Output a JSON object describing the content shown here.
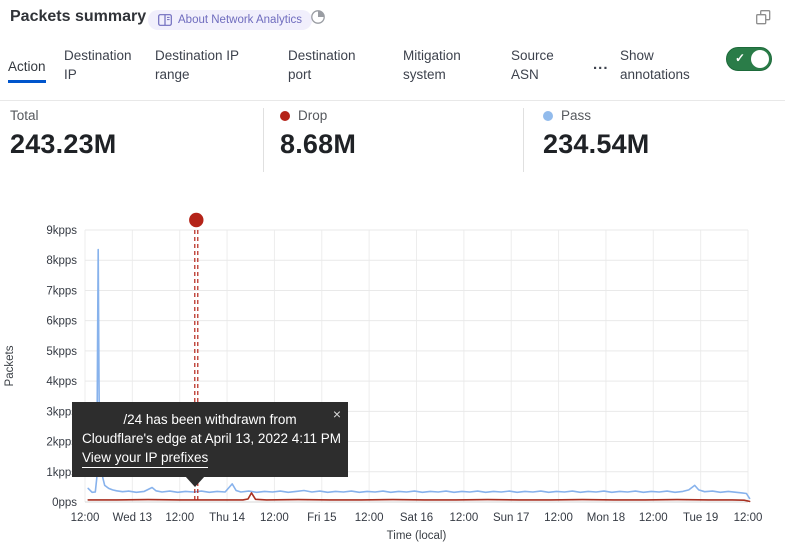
{
  "header": {
    "title": "Packets summary",
    "badge_label": "About Network Analytics",
    "history_icon": "clock-pie-icon",
    "expand_icon": "pop-out-icon"
  },
  "tabs": {
    "items": [
      {
        "label": "Action",
        "active": true
      },
      {
        "label": "Destination IP",
        "active": false
      },
      {
        "label": "Destination IP range",
        "active": false
      },
      {
        "label": "Destination port",
        "active": false
      },
      {
        "label": "Mitigation system",
        "active": false
      },
      {
        "label": "Source ASN",
        "active": false
      }
    ],
    "more_label": "...",
    "annotations_label": "Show annotations",
    "toggle_on": true,
    "toggle_check": "✓"
  },
  "stats": [
    {
      "label": "Total",
      "value": "243.23M",
      "dot_color": null
    },
    {
      "label": "Drop",
      "value": "8.68M",
      "dot_color": "#b42318"
    },
    {
      "label": "Pass",
      "value": "234.54M",
      "dot_color": "#92bbec"
    }
  ],
  "tooltip": {
    "line1": "/24 has been withdrawn from",
    "line2": "Cloudflare's edge at April 13, 2022 4:11 PM",
    "link": "View your IP prefixes",
    "close": "×"
  },
  "colors": {
    "accent_blue": "#0055cc",
    "toggle_green": "#2a7c48",
    "drop_red": "#b42318",
    "pass_blue": "#92bbec"
  },
  "chart_data": {
    "type": "line",
    "xlabel": "Time (local)",
    "ylabel": "Packets",
    "x_unit": "hours since Tue Apr 12 2022 12:00 (local)",
    "x_range": [
      0,
      168
    ],
    "ylim": [
      0,
      9
    ],
    "grid": true,
    "y_ticks": [
      {
        "v": 0,
        "label": "0pps"
      },
      {
        "v": 1,
        "label": "1kpps"
      },
      {
        "v": 2,
        "label": "2kpps"
      },
      {
        "v": 3,
        "label": "3kpps"
      },
      {
        "v": 4,
        "label": "4kpps"
      },
      {
        "v": 5,
        "label": "5kpps"
      },
      {
        "v": 6,
        "label": "6kpps"
      },
      {
        "v": 7,
        "label": "7kpps"
      },
      {
        "v": 8,
        "label": "8kpps"
      },
      {
        "v": 9,
        "label": "9kpps"
      }
    ],
    "x_ticks": [
      {
        "t": 0,
        "label": "12:00"
      },
      {
        "t": 12,
        "label": "Wed 13"
      },
      {
        "t": 24,
        "label": "12:00"
      },
      {
        "t": 36,
        "label": "Thu 14"
      },
      {
        "t": 48,
        "label": "12:00"
      },
      {
        "t": 60,
        "label": "Fri 15"
      },
      {
        "t": 72,
        "label": "12:00"
      },
      {
        "t": 84,
        "label": "Sat 16"
      },
      {
        "t": 96,
        "label": "12:00"
      },
      {
        "t": 108,
        "label": "Sun 17"
      },
      {
        "t": 120,
        "label": "12:00"
      },
      {
        "t": 132,
        "label": "Mon 18"
      },
      {
        "t": 144,
        "label": "12:00"
      },
      {
        "t": 156,
        "label": "Tue 19"
      },
      {
        "t": 168,
        "label": "12:00"
      }
    ],
    "annotation": {
      "t": 28.2,
      "color": "#b42318",
      "label": "/24 has been withdrawn from Cloudflare's edge at April 13, 2022 4:11 PM"
    },
    "series": [
      {
        "name": "Pass",
        "color": "#87b2ec",
        "points": [
          [
            0.8,
            0.45
          ],
          [
            1.8,
            0.32
          ],
          [
            2.6,
            0.33
          ],
          [
            3.0,
            0.8
          ],
          [
            3.2,
            5.5
          ],
          [
            3.35,
            8.35
          ],
          [
            3.55,
            4.0
          ],
          [
            3.75,
            1.0
          ],
          [
            4.1,
            1.35
          ],
          [
            4.5,
            0.8
          ],
          [
            5.0,
            0.55
          ],
          [
            6,
            0.45
          ],
          [
            7,
            0.4
          ],
          [
            8,
            0.37
          ],
          [
            9.5,
            0.34
          ],
          [
            11,
            0.36
          ],
          [
            13,
            0.32
          ],
          [
            15,
            0.35
          ],
          [
            17,
            0.48
          ],
          [
            18,
            0.37
          ],
          [
            19.5,
            0.33
          ],
          [
            21.5,
            0.36
          ],
          [
            23.5,
            0.32
          ],
          [
            25.5,
            0.35
          ],
          [
            27.5,
            0.33
          ],
          [
            29.5,
            0.36
          ],
          [
            31.5,
            0.32
          ],
          [
            33.5,
            0.35
          ],
          [
            35.5,
            0.33
          ],
          [
            37.3,
            0.6
          ],
          [
            38.3,
            0.38
          ],
          [
            39.5,
            0.33
          ],
          [
            41.5,
            0.36
          ],
          [
            43.5,
            0.32
          ],
          [
            45.5,
            0.35
          ],
          [
            47.5,
            0.33
          ],
          [
            49.5,
            0.36
          ],
          [
            51.5,
            0.32
          ],
          [
            53.5,
            0.35
          ],
          [
            55.5,
            0.38
          ],
          [
            57.5,
            0.33
          ],
          [
            59.5,
            0.36
          ],
          [
            61.5,
            0.32
          ],
          [
            63.5,
            0.35
          ],
          [
            65.5,
            0.33
          ],
          [
            67.5,
            0.36
          ],
          [
            69.5,
            0.32
          ],
          [
            71.5,
            0.35
          ],
          [
            73.5,
            0.33
          ],
          [
            75.5,
            0.36
          ],
          [
            77.5,
            0.32
          ],
          [
            79.5,
            0.35
          ],
          [
            81.5,
            0.33
          ],
          [
            83.5,
            0.36
          ],
          [
            85.5,
            0.32
          ],
          [
            87.5,
            0.35
          ],
          [
            89.5,
            0.33
          ],
          [
            91.5,
            0.36
          ],
          [
            93.5,
            0.32
          ],
          [
            95.5,
            0.35
          ],
          [
            97.5,
            0.33
          ],
          [
            99.5,
            0.36
          ],
          [
            101.5,
            0.32
          ],
          [
            103.5,
            0.35
          ],
          [
            105.5,
            0.33
          ],
          [
            107.5,
            0.36
          ],
          [
            109.5,
            0.32
          ],
          [
            111.5,
            0.35
          ],
          [
            113.5,
            0.33
          ],
          [
            115.5,
            0.36
          ],
          [
            117.5,
            0.32
          ],
          [
            119.5,
            0.35
          ],
          [
            121.5,
            0.33
          ],
          [
            123.5,
            0.36
          ],
          [
            125.5,
            0.32
          ],
          [
            127.5,
            0.35
          ],
          [
            129.5,
            0.33
          ],
          [
            131.5,
            0.36
          ],
          [
            133.5,
            0.32
          ],
          [
            135.5,
            0.35
          ],
          [
            137.5,
            0.33
          ],
          [
            139.5,
            0.36
          ],
          [
            141.5,
            0.32
          ],
          [
            143.5,
            0.35
          ],
          [
            145.5,
            0.33
          ],
          [
            147.5,
            0.36
          ],
          [
            149.5,
            0.32
          ],
          [
            151.5,
            0.35
          ],
          [
            153,
            0.4
          ],
          [
            154.5,
            0.55
          ],
          [
            155.5,
            0.4
          ],
          [
            157,
            0.34
          ],
          [
            159,
            0.36
          ],
          [
            161,
            0.32
          ],
          [
            163,
            0.35
          ],
          [
            165,
            0.32
          ],
          [
            166.5,
            0.3
          ],
          [
            167.6,
            0.28
          ],
          [
            168.4,
            0.12
          ]
        ]
      },
      {
        "name": "Drop",
        "color": "#a93122",
        "points": [
          [
            0.8,
            0.07
          ],
          [
            8,
            0.07
          ],
          [
            16,
            0.08
          ],
          [
            24,
            0.07
          ],
          [
            32,
            0.07
          ],
          [
            40,
            0.07
          ],
          [
            41.3,
            0.1
          ],
          [
            42.2,
            0.3
          ],
          [
            43.2,
            0.09
          ],
          [
            46,
            0.07
          ],
          [
            54,
            0.08
          ],
          [
            62,
            0.07
          ],
          [
            70,
            0.07
          ],
          [
            78,
            0.08
          ],
          [
            86,
            0.07
          ],
          [
            94,
            0.07
          ],
          [
            102,
            0.08
          ],
          [
            110,
            0.07
          ],
          [
            118,
            0.07
          ],
          [
            126,
            0.08
          ],
          [
            134,
            0.07
          ],
          [
            142,
            0.07
          ],
          [
            150,
            0.08
          ],
          [
            158,
            0.07
          ],
          [
            164,
            0.07
          ],
          [
            167,
            0.06
          ],
          [
            168.4,
            0.02
          ]
        ]
      }
    ]
  }
}
